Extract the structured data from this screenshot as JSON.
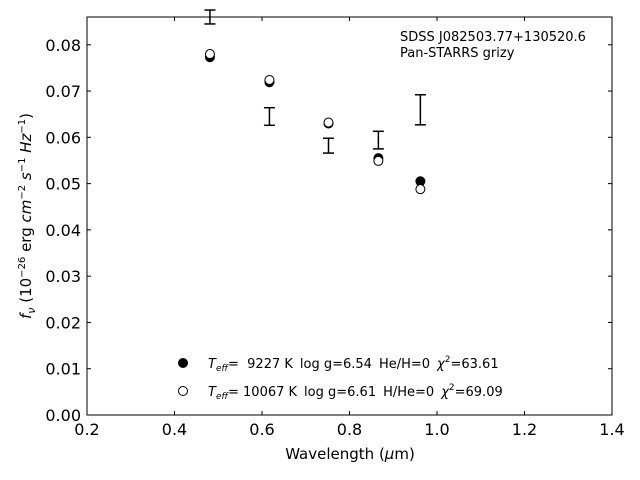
{
  "chart_data": {
    "type": "scatter",
    "title": "",
    "xlabel": "Wavelength (µm)",
    "ylabel": "f_ν (10^-26 erg cm^-2 s^-1 Hz^-1)",
    "xlim": [
      0.2,
      1.4
    ],
    "ylim": [
      0.0,
      0.086
    ],
    "xticks": [
      "0.2",
      "0.4",
      "0.6",
      "0.8",
      "1.0",
      "1.2",
      "1.4"
    ],
    "xtick_values": [
      0.2,
      0.4,
      0.6,
      0.8,
      1.0,
      1.2,
      1.4
    ],
    "yticks": [
      "0.00",
      "0.01",
      "0.02",
      "0.03",
      "0.04",
      "0.05",
      "0.06",
      "0.07",
      "0.08"
    ],
    "ytick_values": [
      0.0,
      0.01,
      0.02,
      0.03,
      0.04,
      0.05,
      0.06,
      0.07,
      0.08
    ],
    "grid": false,
    "annotation": [
      "SDSS J082503.77+130520.6",
      "Pan-STARRS grizy"
    ],
    "observed": {
      "x": [
        0.481,
        0.617,
        0.752,
        0.866,
        0.962
      ],
      "y_low": [
        0.0845,
        0.0626,
        0.0566,
        0.0575,
        0.0627
      ],
      "y_high": [
        0.0875,
        0.0664,
        0.0598,
        0.0613,
        0.0692
      ]
    },
    "series": [
      {
        "name": "T_eff= 9227 K log g=6.54 He/H=0 χ²=63.61",
        "marker": "filled",
        "x": [
          0.481,
          0.617,
          0.752,
          0.866,
          0.962
        ],
        "y": [
          0.0773,
          0.0719,
          0.063,
          0.0555,
          0.0505
        ]
      },
      {
        "name": "T_eff= 10067 K log g=6.61 H/He=0 χ²=69.09",
        "marker": "open",
        "x": [
          0.481,
          0.617,
          0.752,
          0.866,
          0.962
        ],
        "y": [
          0.078,
          0.0724,
          0.0632,
          0.0549,
          0.0488
        ]
      }
    ],
    "legend": {
      "placement": "lower-center",
      "entries": [
        {
          "teff_label": "T",
          "teff_sub": "eff",
          "teff_value": "=  9227 K",
          "logg": "log g=6.54",
          "comp": "He/H=0",
          "chi_label": "χ",
          "chi_sup": "2",
          "chi_value": "=63.61"
        },
        {
          "teff_label": "T",
          "teff_sub": "eff",
          "teff_value": "= 10067 K",
          "logg": "log g=6.61",
          "comp": "H/He=0",
          "chi_label": "χ",
          "chi_sup": "2",
          "chi_value": "=69.09"
        }
      ]
    },
    "colors": {
      "filled": "#000000",
      "open": "#ffffff",
      "stroke": "#000000"
    }
  },
  "labels": {
    "xlabel_pre": "Wavelength (",
    "xlabel_mu": "μ",
    "xlabel_unit": "m)",
    "ylabel_f": "f",
    "ylabel_nu": "ν",
    "ylabel_open": " (10",
    "ylabel_exp1": "−26",
    "ylabel_erg": " erg ",
    "ylabel_cm": "cm",
    "ylabel_exp2": "−2",
    "ylabel_s": " s",
    "ylabel_exp3": "−1",
    "ylabel_hz": " Hz",
    "ylabel_exp4": "−1",
    "ylabel_close": ")"
  }
}
